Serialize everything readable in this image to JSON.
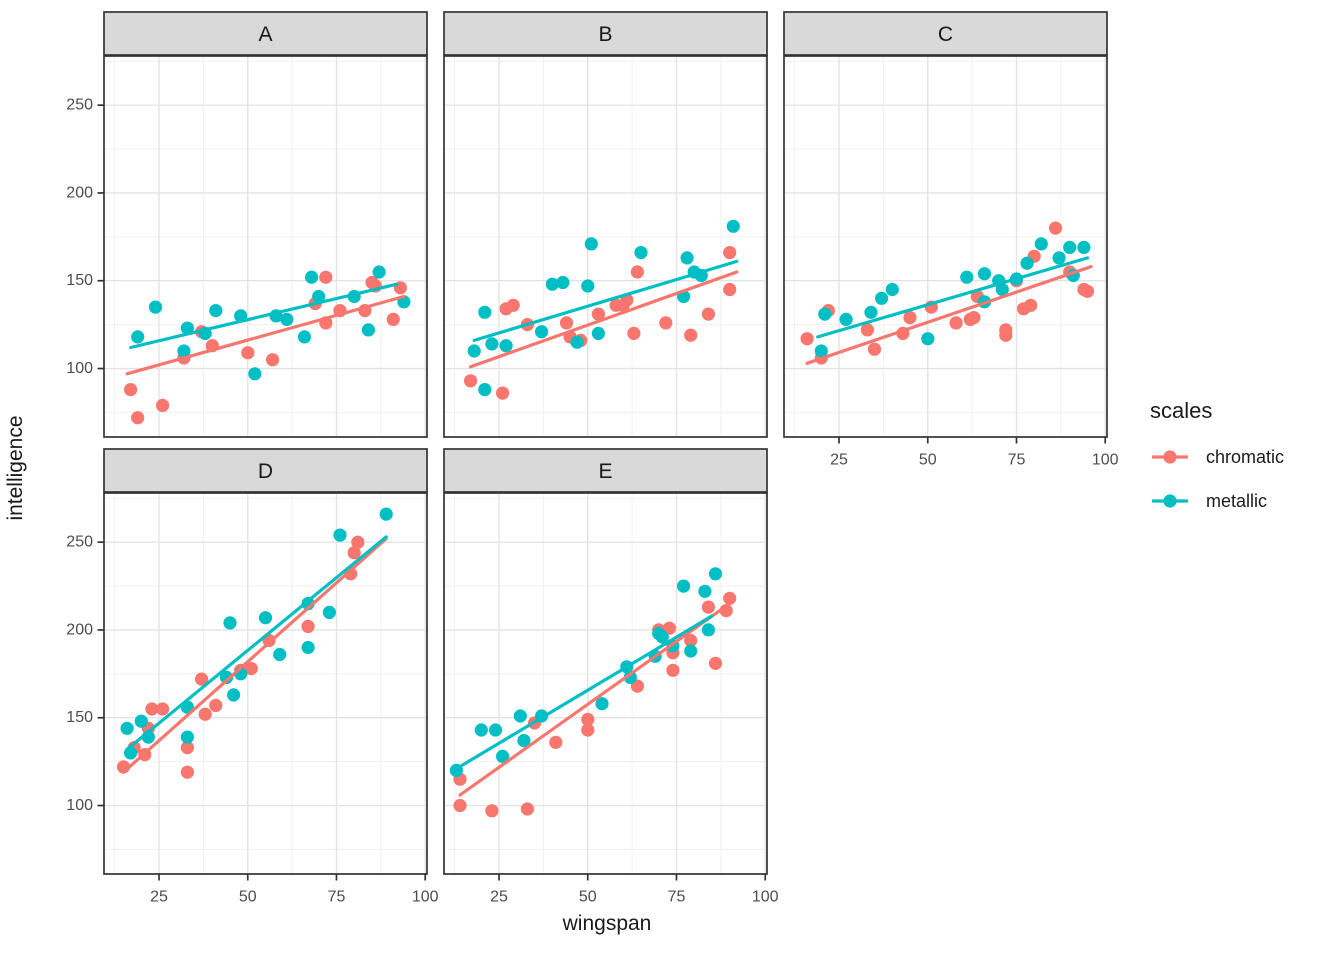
{
  "chart_data": {
    "type": "scatter",
    "xlabel": "wingspan",
    "ylabel": "intelligence",
    "x_ticks": [
      25,
      50,
      75,
      100
    ],
    "y_ticks": [
      100,
      150,
      200,
      250
    ],
    "x_minor_ticks": [
      12.5,
      37.5,
      62.5,
      87.5
    ],
    "y_minor_ticks": [
      75,
      125,
      175,
      225,
      275
    ],
    "x_domain": [
      9.5,
      100.5
    ],
    "y_domain": [
      61,
      278
    ],
    "grid": "major+minor",
    "colors": {
      "chromatic": "#F8766D",
      "metallic": "#00BFC4",
      "strip_fill": "#D9D9D9",
      "panel_border": "#333333",
      "grid_major": "#E4E4E4",
      "grid_minor": "#F0F0F0",
      "tick_label": "#4D4D4D",
      "tick_mark": "#333333"
    },
    "legend": {
      "title": "scales",
      "position": "right",
      "entries": [
        {
          "label": "chromatic",
          "color": "#F8766D"
        },
        {
          "label": "metallic",
          "color": "#00BFC4"
        }
      ]
    },
    "facets": [
      {
        "label": "A",
        "row": 0,
        "col": 0,
        "x_axis": false,
        "y_axis": true,
        "series": [
          {
            "name": "chromatic",
            "points": [
              [
                17,
                88
              ],
              [
                19,
                72
              ],
              [
                26,
                79
              ],
              [
                32,
                106
              ],
              [
                37,
                121
              ],
              [
                40,
                113
              ],
              [
                50,
                109
              ],
              [
                57,
                105
              ],
              [
                69,
                137
              ],
              [
                72,
                126
              ],
              [
                72,
                152
              ],
              [
                76,
                133
              ],
              [
                83,
                133
              ],
              [
                85,
                149
              ],
              [
                86,
                147
              ],
              [
                91,
                128
              ],
              [
                93,
                146
              ]
            ],
            "trend": [
              [
                16,
                97
              ],
              [
                94,
                141
              ]
            ]
          },
          {
            "name": "metallic",
            "points": [
              [
                19,
                118
              ],
              [
                24,
                135
              ],
              [
                32,
                110
              ],
              [
                33,
                123
              ],
              [
                38,
                120
              ],
              [
                41,
                133
              ],
              [
                48,
                130
              ],
              [
                52,
                97
              ],
              [
                58,
                130
              ],
              [
                61,
                128
              ],
              [
                66,
                118
              ],
              [
                68,
                152
              ],
              [
                70,
                141
              ],
              [
                80,
                141
              ],
              [
                84,
                122
              ],
              [
                87,
                155
              ],
              [
                94,
                138
              ]
            ],
            "trend": [
              [
                17,
                112
              ],
              [
                92,
                148
              ]
            ]
          }
        ]
      },
      {
        "label": "B",
        "row": 0,
        "col": 1,
        "x_axis": false,
        "y_axis": false,
        "series": [
          {
            "name": "chromatic",
            "points": [
              [
                17,
                93
              ],
              [
                26,
                86
              ],
              [
                27,
                134
              ],
              [
                29,
                136
              ],
              [
                33,
                125
              ],
              [
                44,
                126
              ],
              [
                45,
                118
              ],
              [
                48,
                116
              ],
              [
                53,
                131
              ],
              [
                58,
                136
              ],
              [
                60,
                136
              ],
              [
                61,
                139
              ],
              [
                63,
                120
              ],
              [
                64,
                155
              ],
              [
                72,
                126
              ],
              [
                79,
                119
              ],
              [
                84,
                131
              ],
              [
                90,
                145
              ],
              [
                90,
                166
              ]
            ],
            "trend": [
              [
                17,
                101
              ],
              [
                92,
                155
              ]
            ]
          },
          {
            "name": "metallic",
            "points": [
              [
                18,
                110
              ],
              [
                21,
                88
              ],
              [
                21,
                132
              ],
              [
                23,
                114
              ],
              [
                27,
                113
              ],
              [
                37,
                121
              ],
              [
                40,
                148
              ],
              [
                43,
                149
              ],
              [
                47,
                115
              ],
              [
                50,
                147
              ],
              [
                51,
                171
              ],
              [
                53,
                120
              ],
              [
                65,
                166
              ],
              [
                77,
                141
              ],
              [
                78,
                163
              ],
              [
                80,
                155
              ],
              [
                82,
                153
              ],
              [
                91,
                181
              ]
            ],
            "trend": [
              [
                18,
                116
              ],
              [
                92,
                161
              ]
            ]
          }
        ]
      },
      {
        "label": "C",
        "row": 0,
        "col": 2,
        "x_axis": true,
        "y_axis": false,
        "series": [
          {
            "name": "chromatic",
            "points": [
              [
                16,
                117
              ],
              [
                20,
                106
              ],
              [
                22,
                133
              ],
              [
                33,
                122
              ],
              [
                35,
                111
              ],
              [
                43,
                120
              ],
              [
                45,
                129
              ],
              [
                51,
                135
              ],
              [
                58,
                126
              ],
              [
                62,
                128
              ],
              [
                63,
                129
              ],
              [
                64,
                141
              ],
              [
                72,
                122
              ],
              [
                72,
                119
              ],
              [
                75,
                150
              ],
              [
                77,
                134
              ],
              [
                79,
                136
              ],
              [
                80,
                164
              ],
              [
                86,
                180
              ],
              [
                90,
                155
              ],
              [
                94,
                145
              ],
              [
                95,
                144
              ]
            ],
            "trend": [
              [
                16,
                103
              ],
              [
                96,
                158
              ]
            ]
          },
          {
            "name": "metallic",
            "points": [
              [
                20,
                110
              ],
              [
                21,
                131
              ],
              [
                27,
                128
              ],
              [
                34,
                132
              ],
              [
                37,
                140
              ],
              [
                40,
                145
              ],
              [
                50,
                117
              ],
              [
                61,
                152
              ],
              [
                66,
                154
              ],
              [
                66,
                138
              ],
              [
                70,
                150
              ],
              [
                71,
                145
              ],
              [
                75,
                151
              ],
              [
                78,
                160
              ],
              [
                82,
                171
              ],
              [
                87,
                163
              ],
              [
                90,
                169
              ],
              [
                91,
                153
              ],
              [
                94,
                169
              ]
            ],
            "trend": [
              [
                19,
                118
              ],
              [
                95,
                163
              ]
            ]
          }
        ]
      },
      {
        "label": "D",
        "row": 1,
        "col": 0,
        "x_axis": true,
        "y_axis": true,
        "series": [
          {
            "name": "chromatic",
            "points": [
              [
                15,
                122
              ],
              [
                18,
                133
              ],
              [
                21,
                129
              ],
              [
                22,
                144
              ],
              [
                23,
                155
              ],
              [
                26,
                155
              ],
              [
                33,
                119
              ],
              [
                33,
                133
              ],
              [
                37,
                172
              ],
              [
                38,
                152
              ],
              [
                41,
                157
              ],
              [
                44,
                173
              ],
              [
                48,
                177
              ],
              [
                51,
                178
              ],
              [
                56,
                194
              ],
              [
                67,
                202
              ],
              [
                79,
                232
              ],
              [
                80,
                244
              ],
              [
                81,
                250
              ]
            ],
            "trend": [
              [
                15,
                119
              ],
              [
                89,
                252
              ]
            ]
          },
          {
            "name": "metallic",
            "points": [
              [
                16,
                144
              ],
              [
                17,
                130
              ],
              [
                20,
                148
              ],
              [
                22,
                139
              ],
              [
                33,
                156
              ],
              [
                33,
                139
              ],
              [
                44,
                173
              ],
              [
                45,
                204
              ],
              [
                46,
                163
              ],
              [
                48,
                175
              ],
              [
                55,
                207
              ],
              [
                59,
                186
              ],
              [
                67,
                190
              ],
              [
                67,
                215
              ],
              [
                73,
                210
              ],
              [
                76,
                254
              ],
              [
                89,
                266
              ]
            ],
            "trend": [
              [
                16,
                132
              ],
              [
                89,
                253
              ]
            ]
          }
        ]
      },
      {
        "label": "E",
        "row": 1,
        "col": 1,
        "x_axis": true,
        "y_axis": false,
        "series": [
          {
            "name": "chromatic",
            "points": [
              [
                14,
                115
              ],
              [
                14,
                100
              ],
              [
                23,
                97
              ],
              [
                33,
                98
              ],
              [
                35,
                147
              ],
              [
                41,
                136
              ],
              [
                50,
                143
              ],
              [
                50,
                149
              ],
              [
                64,
                168
              ],
              [
                70,
                200
              ],
              [
                73,
                201
              ],
              [
                74,
                177
              ],
              [
                74,
                187
              ],
              [
                79,
                194
              ],
              [
                84,
                213
              ],
              [
                86,
                181
              ],
              [
                89,
                211
              ],
              [
                90,
                218
              ]
            ],
            "trend": [
              [
                14,
                106
              ],
              [
                90,
                215
              ]
            ]
          },
          {
            "name": "metallic",
            "points": [
              [
                13,
                120
              ],
              [
                20,
                143
              ],
              [
                24,
                143
              ],
              [
                26,
                128
              ],
              [
                31,
                151
              ],
              [
                32,
                137
              ],
              [
                37,
                151
              ],
              [
                54,
                158
              ],
              [
                61,
                179
              ],
              [
                62,
                173
              ],
              [
                69,
                185
              ],
              [
                70,
                198
              ],
              [
                71,
                196
              ],
              [
                74,
                191
              ],
              [
                77,
                225
              ],
              [
                79,
                188
              ],
              [
                83,
                222
              ],
              [
                84,
                200
              ],
              [
                86,
                232
              ]
            ],
            "trend": [
              [
                13,
                121
              ],
              [
                85,
                208
              ]
            ]
          }
        ]
      }
    ]
  }
}
